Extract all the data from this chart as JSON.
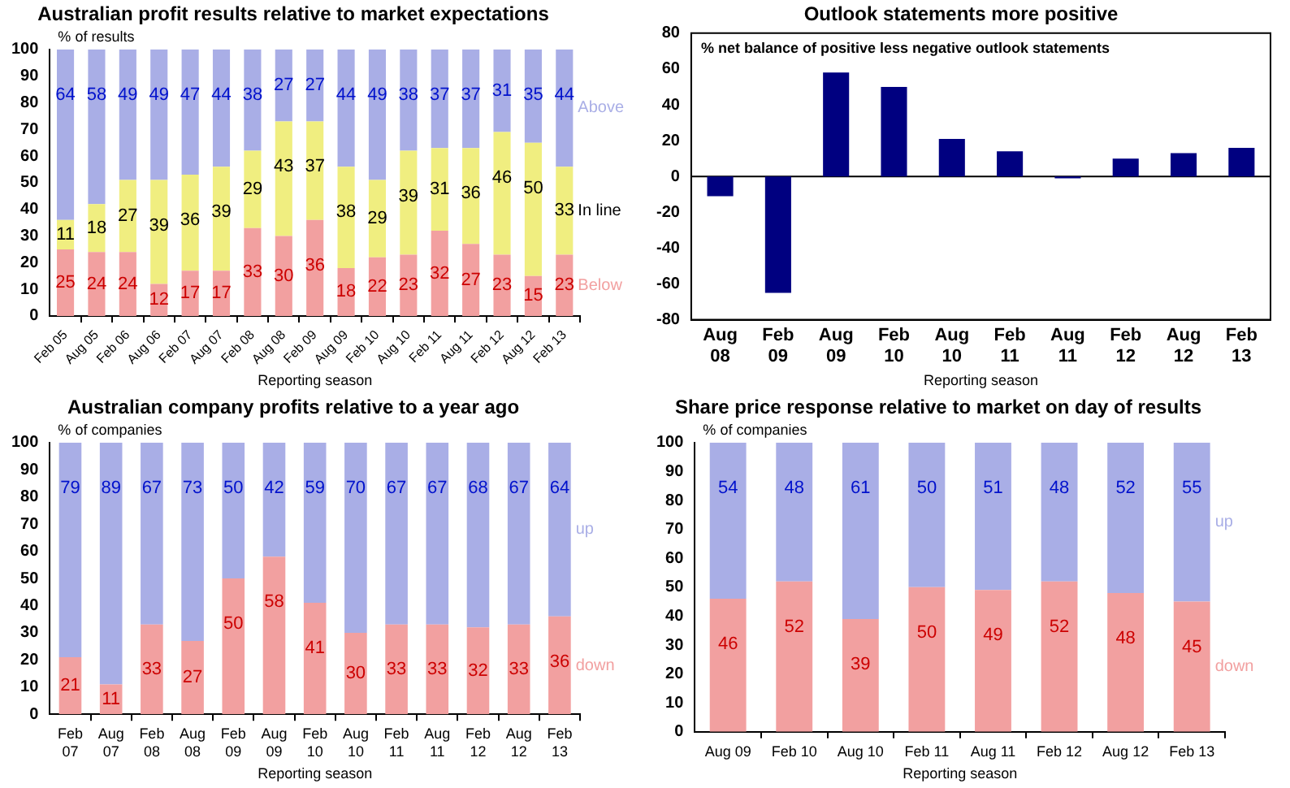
{
  "chart_data": [
    {
      "type": "bar",
      "title": "Australian profit results relative to market expectations",
      "ylabel": "% of results",
      "xlabel": "Reporting season",
      "stacked": true,
      "data_labels": true,
      "categories": [
        "Feb 05",
        "Aug 05",
        "Feb 06",
        "Aug 06",
        "Feb 07",
        "Aug 07",
        "Feb 08",
        "Aug 08",
        "Feb 09",
        "Aug 09",
        "Feb 10",
        "Aug 10",
        "Feb 11",
        "Aug 11",
        "Feb 12",
        "Aug 12",
        "Feb 13"
      ],
      "series": [
        {
          "name": "Below",
          "color": "#f2a0a0",
          "values": [
            25,
            24,
            24,
            12,
            17,
            17,
            33,
            30,
            36,
            18,
            22,
            23,
            32,
            27,
            23,
            15,
            23
          ]
        },
        {
          "name": "In line",
          "color": "#f0ee80",
          "values": [
            11,
            18,
            27,
            39,
            36,
            39,
            29,
            43,
            37,
            38,
            29,
            39,
            31,
            36,
            46,
            50,
            33
          ]
        },
        {
          "name": "Above",
          "color": "#a9aee6",
          "values": [
            64,
            58,
            49,
            49,
            47,
            44,
            38,
            27,
            27,
            44,
            49,
            38,
            37,
            37,
            31,
            35,
            44
          ]
        }
      ],
      "ylim": [
        0,
        100
      ],
      "yticks": [
        0,
        10,
        20,
        30,
        40,
        50,
        60,
        70,
        80,
        90,
        100
      ]
    },
    {
      "type": "bar",
      "title": "Outlook statements more positive",
      "ylabel": "% net balance of positive less negative outlook statements",
      "xlabel": "Reporting season",
      "categories": [
        "Aug 08",
        "Feb 09",
        "Aug 09",
        "Feb 10",
        "Aug 10",
        "Feb 11",
        "Aug 11",
        "Feb 12",
        "Aug 12",
        "Feb 13"
      ],
      "series": [
        {
          "color": "#000080",
          "values": [
            -11,
            -65,
            58,
            50,
            21,
            14,
            -1,
            10,
            13,
            16
          ]
        }
      ],
      "ylim": [
        -80,
        80
      ],
      "yticks": [
        -80,
        -60,
        -40,
        -20,
        0,
        20,
        40,
        60,
        80
      ]
    },
    {
      "type": "bar",
      "title": "Australian company profits relative to a year ago",
      "ylabel": "% of companies",
      "xlabel": "Reporting season",
      "stacked": true,
      "data_labels": true,
      "categories": [
        "Feb 07",
        "Aug 07",
        "Feb 08",
        "Aug 08",
        "Feb 09",
        "Aug 09",
        "Feb 10",
        "Aug 10",
        "Feb 11",
        "Aug 11",
        "Feb 12",
        "Aug 12",
        "Feb 13"
      ],
      "series": [
        {
          "name": "down",
          "color": "#f2a0a0",
          "values": [
            21,
            11,
            33,
            27,
            50,
            58,
            41,
            30,
            33,
            33,
            32,
            33,
            36
          ]
        },
        {
          "name": "up",
          "color": "#a9aee6",
          "values": [
            79,
            89,
            67,
            73,
            50,
            42,
            59,
            70,
            67,
            67,
            68,
            67,
            64
          ]
        }
      ],
      "ylim": [
        0,
        100
      ],
      "yticks": [
        0,
        10,
        20,
        30,
        40,
        50,
        60,
        70,
        80,
        90,
        100
      ]
    },
    {
      "type": "bar",
      "title": "Share price response relative to market on day of results",
      "ylabel": "% of companies",
      "xlabel": "Reporting season",
      "stacked": true,
      "data_labels": true,
      "categories": [
        "Aug 09",
        "Feb 10",
        "Aug 10",
        "Feb 11",
        "Aug 11",
        "Feb 12",
        "Aug 12",
        "Feb 13"
      ],
      "series": [
        {
          "name": "down",
          "color": "#f2a0a0",
          "values": [
            46,
            52,
            39,
            50,
            49,
            52,
            48,
            45
          ]
        },
        {
          "name": "up",
          "color": "#a9aee6",
          "values": [
            54,
            48,
            61,
            50,
            51,
            48,
            52,
            55
          ]
        }
      ],
      "ylim": [
        0,
        100
      ],
      "yticks": [
        0,
        10,
        20,
        30,
        40,
        50,
        60,
        70,
        80,
        90,
        100
      ]
    }
  ]
}
